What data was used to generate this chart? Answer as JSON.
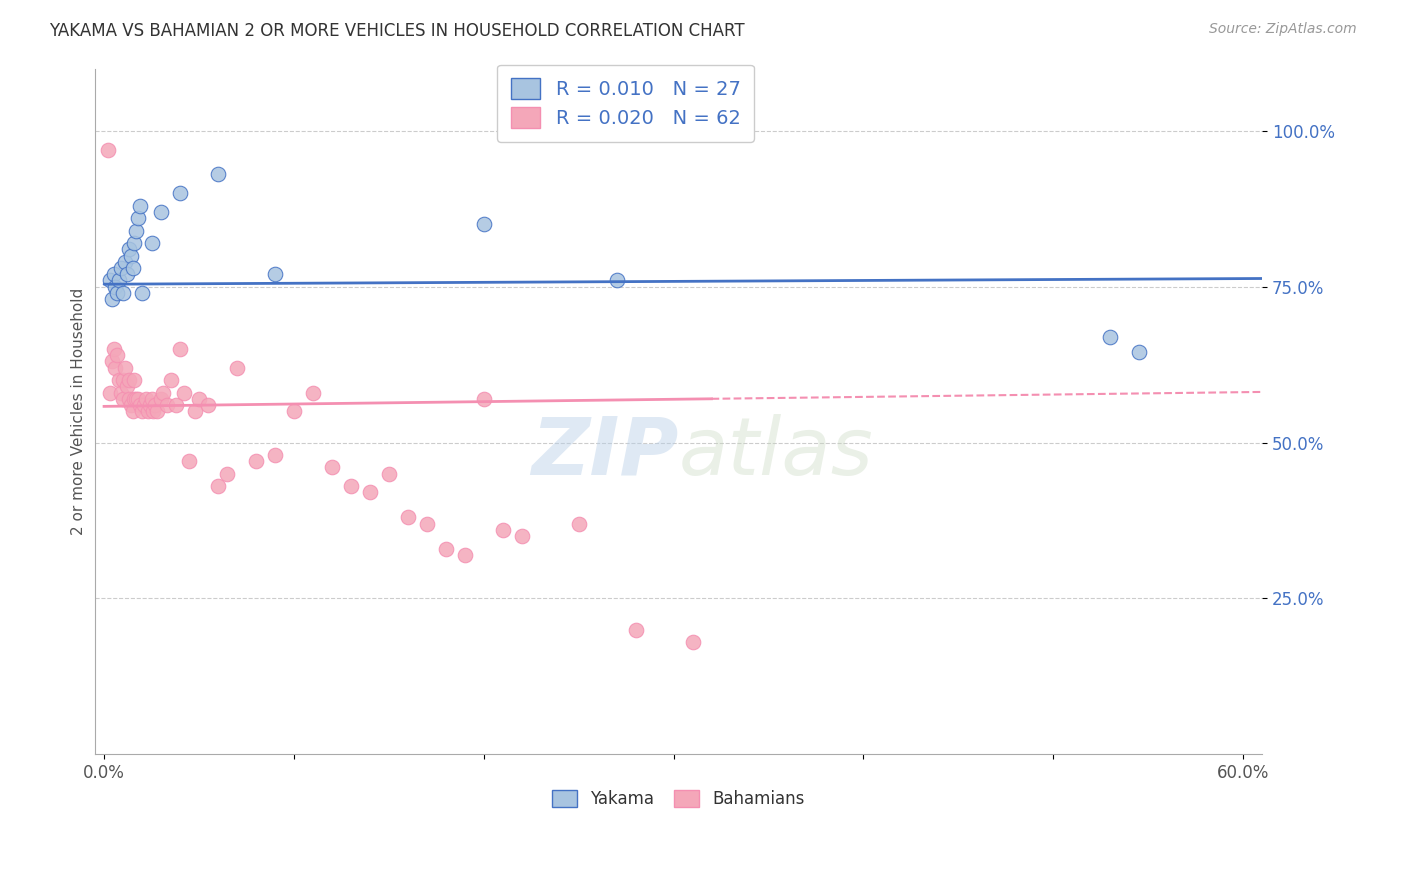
{
  "title": "YAKAMA VS BAHAMIAN 2 OR MORE VEHICLES IN HOUSEHOLD CORRELATION CHART",
  "source": "Source: ZipAtlas.com",
  "ylabel": "2 or more Vehicles in Household",
  "xmin": 0.0,
  "xmax": 0.6,
  "ymin": 0.0,
  "ymax": 1.1,
  "yticks": [
    0.25,
    0.5,
    0.75,
    1.0
  ],
  "ytick_labels": [
    "25.0%",
    "50.0%",
    "75.0%",
    "100.0%"
  ],
  "xticks": [
    0.0,
    0.1,
    0.2,
    0.3,
    0.4,
    0.5,
    0.6
  ],
  "xtick_labels": [
    "0.0%",
    "",
    "",
    "",
    "",
    "",
    "60.0%"
  ],
  "grid_color": "#cccccc",
  "background_color": "#ffffff",
  "yakama_color": "#a8c4e0",
  "bahamian_color": "#f4a7b9",
  "trendline_yakama_color": "#4472c4",
  "trendline_bahamian_color": "#f48fb1",
  "legend_R_yakama": "0.010",
  "legend_N_yakama": "27",
  "legend_R_bahamian": "0.020",
  "legend_N_bahamian": "62",
  "watermark_zip": "ZIP",
  "watermark_atlas": "atlas",
  "yakama_x": [
    0.003,
    0.004,
    0.005,
    0.006,
    0.007,
    0.008,
    0.009,
    0.01,
    0.011,
    0.012,
    0.013,
    0.014,
    0.015,
    0.016,
    0.017,
    0.018,
    0.019,
    0.02,
    0.025,
    0.03,
    0.04,
    0.06,
    0.09,
    0.2,
    0.27,
    0.53,
    0.545
  ],
  "yakama_y": [
    0.76,
    0.73,
    0.77,
    0.75,
    0.74,
    0.76,
    0.78,
    0.74,
    0.79,
    0.77,
    0.81,
    0.8,
    0.78,
    0.82,
    0.84,
    0.86,
    0.88,
    0.74,
    0.82,
    0.87,
    0.9,
    0.93,
    0.77,
    0.85,
    0.76,
    0.67,
    0.645
  ],
  "bahamian_x": [
    0.002,
    0.003,
    0.004,
    0.005,
    0.006,
    0.007,
    0.008,
    0.009,
    0.01,
    0.01,
    0.011,
    0.012,
    0.013,
    0.013,
    0.014,
    0.015,
    0.016,
    0.016,
    0.017,
    0.018,
    0.019,
    0.02,
    0.021,
    0.022,
    0.023,
    0.024,
    0.025,
    0.026,
    0.027,
    0.028,
    0.03,
    0.031,
    0.033,
    0.035,
    0.038,
    0.04,
    0.042,
    0.045,
    0.048,
    0.05,
    0.055,
    0.06,
    0.065,
    0.07,
    0.08,
    0.09,
    0.1,
    0.11,
    0.12,
    0.13,
    0.14,
    0.15,
    0.16,
    0.17,
    0.18,
    0.19,
    0.2,
    0.21,
    0.22,
    0.25,
    0.28,
    0.31
  ],
  "bahamian_y": [
    0.97,
    0.58,
    0.63,
    0.65,
    0.62,
    0.64,
    0.6,
    0.58,
    0.57,
    0.6,
    0.62,
    0.59,
    0.57,
    0.6,
    0.56,
    0.55,
    0.57,
    0.6,
    0.57,
    0.57,
    0.56,
    0.55,
    0.56,
    0.57,
    0.55,
    0.56,
    0.57,
    0.55,
    0.56,
    0.55,
    0.57,
    0.58,
    0.56,
    0.6,
    0.56,
    0.65,
    0.58,
    0.47,
    0.55,
    0.57,
    0.56,
    0.43,
    0.45,
    0.62,
    0.47,
    0.48,
    0.55,
    0.58,
    0.46,
    0.43,
    0.42,
    0.45,
    0.38,
    0.37,
    0.33,
    0.32,
    0.57,
    0.36,
    0.35,
    0.37,
    0.2,
    0.18
  ],
  "yakama_trendline_y_intercept": 0.754,
  "yakama_trendline_slope": 0.015,
  "bahamian_trendline_y_intercept": 0.558,
  "bahamian_trendline_slope": 0.038
}
